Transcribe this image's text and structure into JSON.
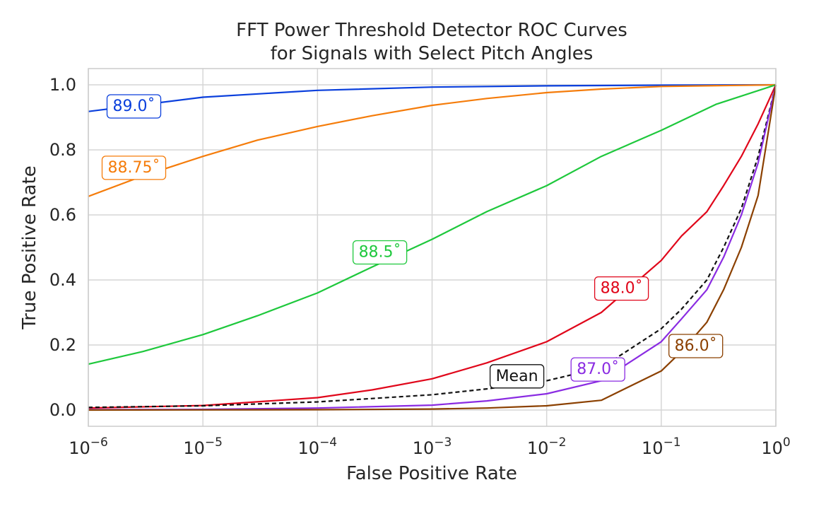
{
  "chart_data": {
    "type": "line",
    "title_lines": [
      "FFT Power Threshold Detector ROC Curves",
      "for Signals with Select Pitch Angles"
    ],
    "xlabel": "False Positive Rate",
    "ylabel": "True Positive Rate",
    "x_scale": "log",
    "xlim": [
      1e-06,
      1
    ],
    "ylim": [
      -0.05,
      1.05
    ],
    "grid": true,
    "x_ticks": [
      {
        "value": 1e-06,
        "base": "10",
        "exp": "−6"
      },
      {
        "value": 1e-05,
        "base": "10",
        "exp": "−5"
      },
      {
        "value": 0.0001,
        "base": "10",
        "exp": "−4"
      },
      {
        "value": 0.001,
        "base": "10",
        "exp": "−3"
      },
      {
        "value": 0.01,
        "base": "10",
        "exp": "−2"
      },
      {
        "value": 0.1,
        "base": "10",
        "exp": "−1"
      },
      {
        "value": 1,
        "base": "10",
        "exp": "0"
      }
    ],
    "y_ticks": [
      {
        "value": 0.0,
        "label": "0.0"
      },
      {
        "value": 0.2,
        "label": "0.2"
      },
      {
        "value": 0.4,
        "label": "0.4"
      },
      {
        "value": 0.6,
        "label": "0.6"
      },
      {
        "value": 0.8,
        "label": "0.8"
      },
      {
        "value": 1.0,
        "label": "1.0"
      }
    ],
    "series": [
      {
        "name": "89.0˚",
        "color": "#0a3fdc",
        "dashed": false,
        "label_at": [
          2.5e-06,
          0.937
        ],
        "points": [
          [
            1e-06,
            0.918
          ],
          [
            1e-05,
            0.962
          ],
          [
            0.0001,
            0.983
          ],
          [
            0.001,
            0.993
          ],
          [
            0.01,
            0.997
          ],
          [
            0.1,
            0.999
          ],
          [
            1,
            1.0
          ]
        ]
      },
      {
        "name": "88.75˚",
        "color": "#f57c0a",
        "dashed": false,
        "label_at": [
          2.5e-06,
          0.748
        ],
        "points": [
          [
            1e-06,
            0.657
          ],
          [
            3e-06,
            0.72
          ],
          [
            1e-05,
            0.78
          ],
          [
            3e-05,
            0.83
          ],
          [
            0.0001,
            0.872
          ],
          [
            0.0003,
            0.905
          ],
          [
            0.001,
            0.937
          ],
          [
            0.003,
            0.958
          ],
          [
            0.01,
            0.976
          ],
          [
            0.03,
            0.987
          ],
          [
            0.1,
            0.995
          ],
          [
            1,
            1.0
          ]
        ]
      },
      {
        "name": "88.5˚",
        "color": "#1ec83c",
        "dashed": false,
        "label_at": [
          0.00035,
          0.488
        ],
        "points": [
          [
            1e-06,
            0.141
          ],
          [
            3e-06,
            0.18
          ],
          [
            1e-05,
            0.232
          ],
          [
            3e-05,
            0.29
          ],
          [
            0.0001,
            0.36
          ],
          [
            0.0003,
            0.44
          ],
          [
            0.001,
            0.525
          ],
          [
            0.003,
            0.61
          ],
          [
            0.01,
            0.69
          ],
          [
            0.03,
            0.78
          ],
          [
            0.1,
            0.86
          ],
          [
            0.3,
            0.94
          ],
          [
            1,
            1.0
          ]
        ]
      },
      {
        "name": "88.0˚",
        "color": "#e0061a",
        "dashed": false,
        "label_at": [
          0.045,
          0.377
        ],
        "points": [
          [
            1e-06,
            0.006
          ],
          [
            1e-05,
            0.014
          ],
          [
            0.0001,
            0.038
          ],
          [
            0.0003,
            0.062
          ],
          [
            0.001,
            0.096
          ],
          [
            0.003,
            0.145
          ],
          [
            0.01,
            0.21
          ],
          [
            0.03,
            0.3
          ],
          [
            0.1,
            0.46
          ],
          [
            0.15,
            0.535
          ],
          [
            0.25,
            0.61
          ],
          [
            0.35,
            0.69
          ],
          [
            0.5,
            0.78
          ],
          [
            0.7,
            0.88
          ],
          [
            1,
            1.0
          ]
        ]
      },
      {
        "name": "Mean",
        "color": "#111111",
        "dashed": true,
        "label_at": [
          0.0055,
          0.107
        ],
        "points": [
          [
            1e-06,
            0.008
          ],
          [
            1e-05,
            0.013
          ],
          [
            0.0001,
            0.025
          ],
          [
            0.001,
            0.047
          ],
          [
            0.003,
            0.065
          ],
          [
            0.01,
            0.09
          ],
          [
            0.03,
            0.13
          ],
          [
            0.1,
            0.25
          ],
          [
            0.15,
            0.31
          ],
          [
            0.25,
            0.4
          ],
          [
            0.35,
            0.5
          ],
          [
            0.5,
            0.62
          ],
          [
            0.7,
            0.78
          ],
          [
            1,
            1.0
          ]
        ]
      },
      {
        "name": "87.0˚",
        "color": "#8a2be2",
        "dashed": false,
        "label_at": [
          0.028,
          0.128
        ],
        "points": [
          [
            1e-06,
            0.001
          ],
          [
            1e-05,
            0.002
          ],
          [
            0.0001,
            0.006
          ],
          [
            0.001,
            0.015
          ],
          [
            0.003,
            0.028
          ],
          [
            0.01,
            0.05
          ],
          [
            0.03,
            0.09
          ],
          [
            0.1,
            0.21
          ],
          [
            0.15,
            0.28
          ],
          [
            0.25,
            0.37
          ],
          [
            0.35,
            0.47
          ],
          [
            0.5,
            0.6
          ],
          [
            0.7,
            0.76
          ],
          [
            1,
            1.0
          ]
        ]
      },
      {
        "name": "86.0˚",
        "color": "#8b4000",
        "dashed": false,
        "label_at": [
          0.2,
          0.2
        ],
        "points": [
          [
            1e-06,
            0.0
          ],
          [
            0.0001,
            0.001
          ],
          [
            0.001,
            0.003
          ],
          [
            0.003,
            0.006
          ],
          [
            0.01,
            0.013
          ],
          [
            0.03,
            0.03
          ],
          [
            0.1,
            0.12
          ],
          [
            0.15,
            0.18
          ],
          [
            0.25,
            0.27
          ],
          [
            0.35,
            0.37
          ],
          [
            0.5,
            0.5
          ],
          [
            0.7,
            0.66
          ],
          [
            1,
            1.0
          ]
        ]
      }
    ]
  }
}
